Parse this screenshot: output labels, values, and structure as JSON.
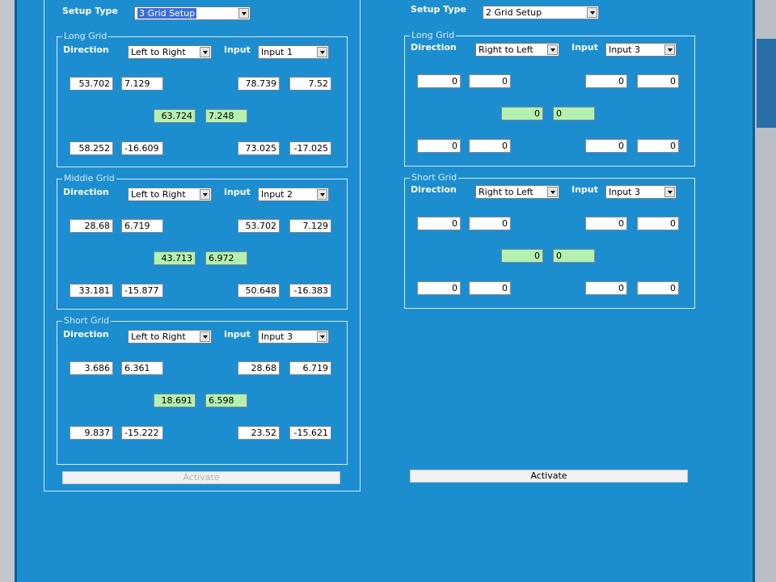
{
  "left": {
    "setup_type_label": "Setup Type",
    "setup_type_value": "3 Grid Setup",
    "grids": [
      {
        "legend": "Long Grid",
        "direction_label": "Direction",
        "direction_value": "Left to Right",
        "input_label": "Input",
        "input_value": "Input 1",
        "top_left": [
          "53.702",
          "7.129"
        ],
        "top_right": [
          "78.739",
          "7.52"
        ],
        "center": [
          "63.724",
          "7.248"
        ],
        "bottom_left": [
          "58.252",
          "-16.609"
        ],
        "bottom_right": [
          "73.025",
          "-17.025"
        ]
      },
      {
        "legend": "Middle Grid",
        "direction_label": "Direction",
        "direction_value": "Left to Right",
        "input_label": "Input",
        "input_value": "Input 2",
        "top_left": [
          "28.68",
          "6.719"
        ],
        "top_right": [
          "53.702",
          "7.129"
        ],
        "center": [
          "43.713",
          "6.972"
        ],
        "bottom_left": [
          "33.181",
          "-15.877"
        ],
        "bottom_right": [
          "50.648",
          "-16.383"
        ]
      },
      {
        "legend": "Short Grid",
        "direction_label": "Direction",
        "direction_value": "Left to Right",
        "input_label": "Input",
        "input_value": "Input 3",
        "top_left": [
          "3.686",
          "6.361"
        ],
        "top_right": [
          "28.68",
          "6.719"
        ],
        "center": [
          "18.691",
          "6.598"
        ],
        "bottom_left": [
          "9.837",
          "-15.222"
        ],
        "bottom_right": [
          "23.52",
          "-15.621"
        ]
      }
    ],
    "activate_label": "Activate"
  },
  "right": {
    "setup_type_label": "Setup Type",
    "setup_type_value": "2 Grid Setup",
    "grids": [
      {
        "legend": "Long Grid",
        "direction_label": "Direction",
        "direction_value": "Right to Left",
        "input_label": "Input",
        "input_value": "Input 3",
        "top_left": [
          "0",
          "0"
        ],
        "top_right": [
          "0",
          "0"
        ],
        "center": [
          "0",
          "0"
        ],
        "bottom_left": [
          "0",
          "0"
        ],
        "bottom_right": [
          "0",
          "0"
        ]
      },
      {
        "legend": "Short Grid",
        "direction_label": "Direction",
        "direction_value": "Right to Left",
        "input_label": "Input",
        "input_value": "Input 3",
        "top_left": [
          "0",
          "0"
        ],
        "top_right": [
          "0",
          "0"
        ],
        "center": [
          "0",
          "0"
        ],
        "bottom_left": [
          "0",
          "0"
        ],
        "bottom_right": [
          "0",
          "0"
        ]
      }
    ],
    "activate_label": "Activate"
  }
}
